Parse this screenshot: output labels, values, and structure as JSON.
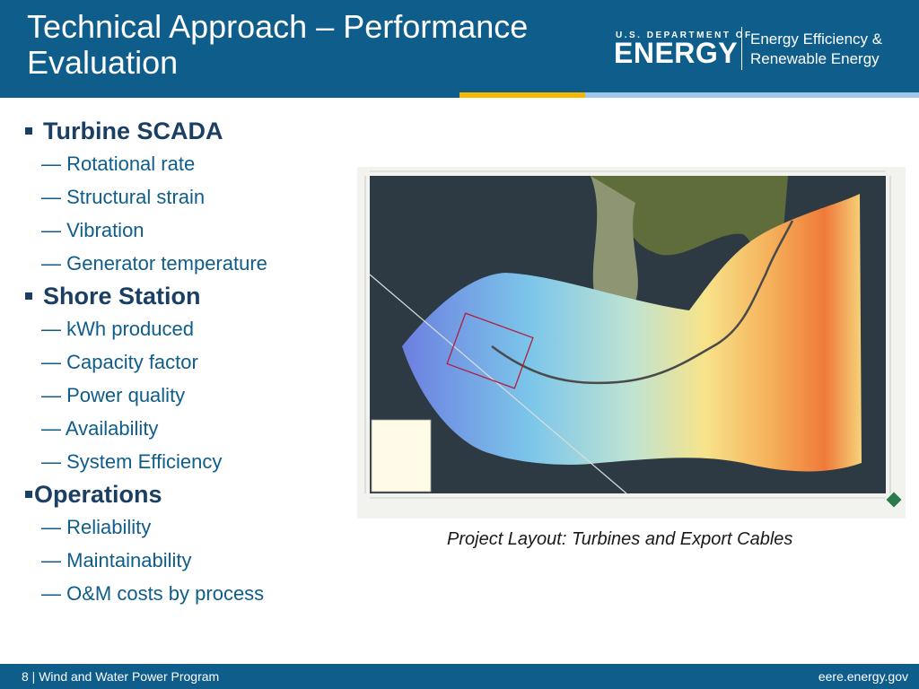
{
  "header": {
    "title": "Technical Approach – Performance Evaluation",
    "logo_small": "U.S. DEPARTMENT OF",
    "logo_big": "ENERGY",
    "office_line1": "Energy Efficiency &",
    "office_line2": "Renewable Energy"
  },
  "sections": [
    {
      "heading": "Turbine SCADA",
      "items": [
        "— Rotational rate",
        "— Structural strain",
        "— Vibration",
        "— Generator temperature"
      ]
    },
    {
      "heading": "Shore Station",
      "items": [
        "— kWh produced",
        "— Capacity factor",
        "— Power quality",
        "— Availability",
        "— System Efficiency"
      ]
    },
    {
      "heading": "Operations",
      "items": [
        "— Reliability",
        "— Maintainability",
        "— O&M costs by process"
      ]
    }
  ],
  "figure": {
    "caption": "Project Layout: Turbines and Export Cables"
  },
  "footer": {
    "left": "8 | Wind and Water Power Program",
    "right": "eere.energy.gov"
  },
  "colors": {
    "brand_blue": "#0f5d8b",
    "heading_navy": "#1b3f63",
    "accent_yellow": "#f5b800",
    "accent_light": "#9fc8e8"
  }
}
